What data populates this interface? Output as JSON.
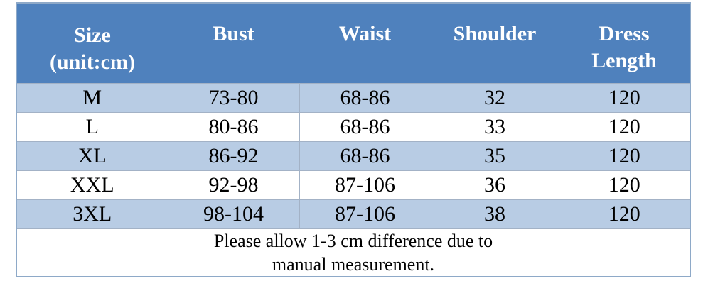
{
  "table": {
    "header": [
      "Size (unit:cm)",
      "Bust",
      "Waist",
      "Shoulder",
      "Dress Length"
    ],
    "rows": [
      [
        "M",
        "73-80",
        "68-86",
        "32",
        "120"
      ],
      [
        "L",
        "80-86",
        "68-86",
        "33",
        "120"
      ],
      [
        "XL",
        "86-92",
        "68-86",
        "35",
        "120"
      ],
      [
        "XXL",
        "92-98",
        "87-106",
        "36",
        "120"
      ],
      [
        "3XL",
        "98-104",
        "87-106",
        "38",
        "120"
      ]
    ],
    "note": "Please allow 1-3 cm difference due to manual measurement."
  }
}
